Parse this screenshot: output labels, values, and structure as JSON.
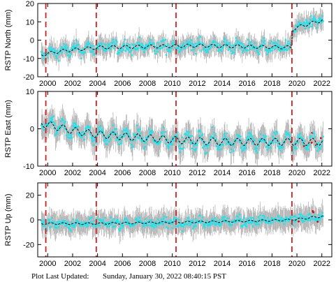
{
  "footer": {
    "label": "Plot Last Updated:",
    "timestamp": "Sunday, January 30, 2022 08:40:15 PST"
  },
  "colors": {
    "errorbar": "#b4b4b4",
    "data": "#18e6f0",
    "model": "#000000",
    "event": "#d81e1e",
    "outlier": "#e00000",
    "frame": "#000000"
  },
  "chart_data": [
    {
      "type": "scatter",
      "ylabel": "RSTP North (mm)",
      "xlim": [
        1999.2,
        2022.8
      ],
      "ylim": [
        -20,
        20
      ],
      "yticks": [
        -20,
        -10,
        0,
        10,
        20
      ],
      "xticks": [
        2000,
        2002,
        2004,
        2006,
        2008,
        2010,
        2012,
        2014,
        2016,
        2018,
        2020,
        2022
      ],
      "show_xtick_labels": true,
      "event_lines": [
        1999.85,
        2003.9,
        2010.3,
        2019.6
      ],
      "noise": 3.2,
      "errorbar": 4.5,
      "model": [
        {
          "x": 1999.5,
          "y": -8
        },
        {
          "x": 2001.0,
          "y": -6
        },
        {
          "x": 2004.0,
          "y": -4
        },
        {
          "x": 2008.0,
          "y": -3.5
        },
        {
          "x": 2012.0,
          "y": -3
        },
        {
          "x": 2016.0,
          "y": -3.5
        },
        {
          "x": 2019.55,
          "y": -4
        },
        {
          "x": 2019.65,
          "y": 6
        },
        {
          "x": 2020.5,
          "y": 8
        },
        {
          "x": 2022.1,
          "y": 11
        }
      ],
      "seasonal_amplitude": 1.5
    },
    {
      "type": "scatter",
      "ylabel": "RSTP East (mm)",
      "xlim": [
        1999.2,
        2022.8
      ],
      "ylim": [
        -10,
        10
      ],
      "yticks": [
        -10,
        0,
        10
      ],
      "xticks": [
        2000,
        2002,
        2004,
        2006,
        2008,
        2010,
        2012,
        2014,
        2016,
        2018,
        2020,
        2022
      ],
      "show_xtick_labels": true,
      "event_lines": [
        1999.85,
        2003.9,
        2010.3,
        2019.6
      ],
      "noise": 1.6,
      "errorbar": 3.0,
      "model": [
        {
          "x": 1999.5,
          "y": 1.5
        },
        {
          "x": 2002.0,
          "y": -0.5
        },
        {
          "x": 2004.0,
          "y": -1.5
        },
        {
          "x": 2008.0,
          "y": -2.5
        },
        {
          "x": 2010.3,
          "y": -3
        },
        {
          "x": 2014.0,
          "y": -3.5
        },
        {
          "x": 2018.0,
          "y": -3.5
        },
        {
          "x": 2022.1,
          "y": -3.5
        }
      ],
      "seasonal_amplitude": 1.6
    },
    {
      "type": "scatter",
      "ylabel": "RSTP Up (mm)",
      "xlim": [
        1999.2,
        2022.8
      ],
      "ylim": [
        -30,
        30
      ],
      "yticks": [
        -20,
        0,
        20
      ],
      "xticks": [
        2000,
        2002,
        2004,
        2006,
        2008,
        2010,
        2012,
        2014,
        2016,
        2018,
        2020,
        2022
      ],
      "show_xtick_labels": true,
      "event_lines": [
        1999.85,
        2003.9,
        2010.3,
        2019.6
      ],
      "noise": 4.0,
      "errorbar": 8.0,
      "model": [
        {
          "x": 1999.5,
          "y": -3
        },
        {
          "x": 2004.0,
          "y": -3
        },
        {
          "x": 2010.0,
          "y": -2
        },
        {
          "x": 2016.0,
          "y": -1
        },
        {
          "x": 2019.6,
          "y": 0
        },
        {
          "x": 2022.1,
          "y": 3
        }
      ],
      "seasonal_amplitude": 1.2
    }
  ]
}
